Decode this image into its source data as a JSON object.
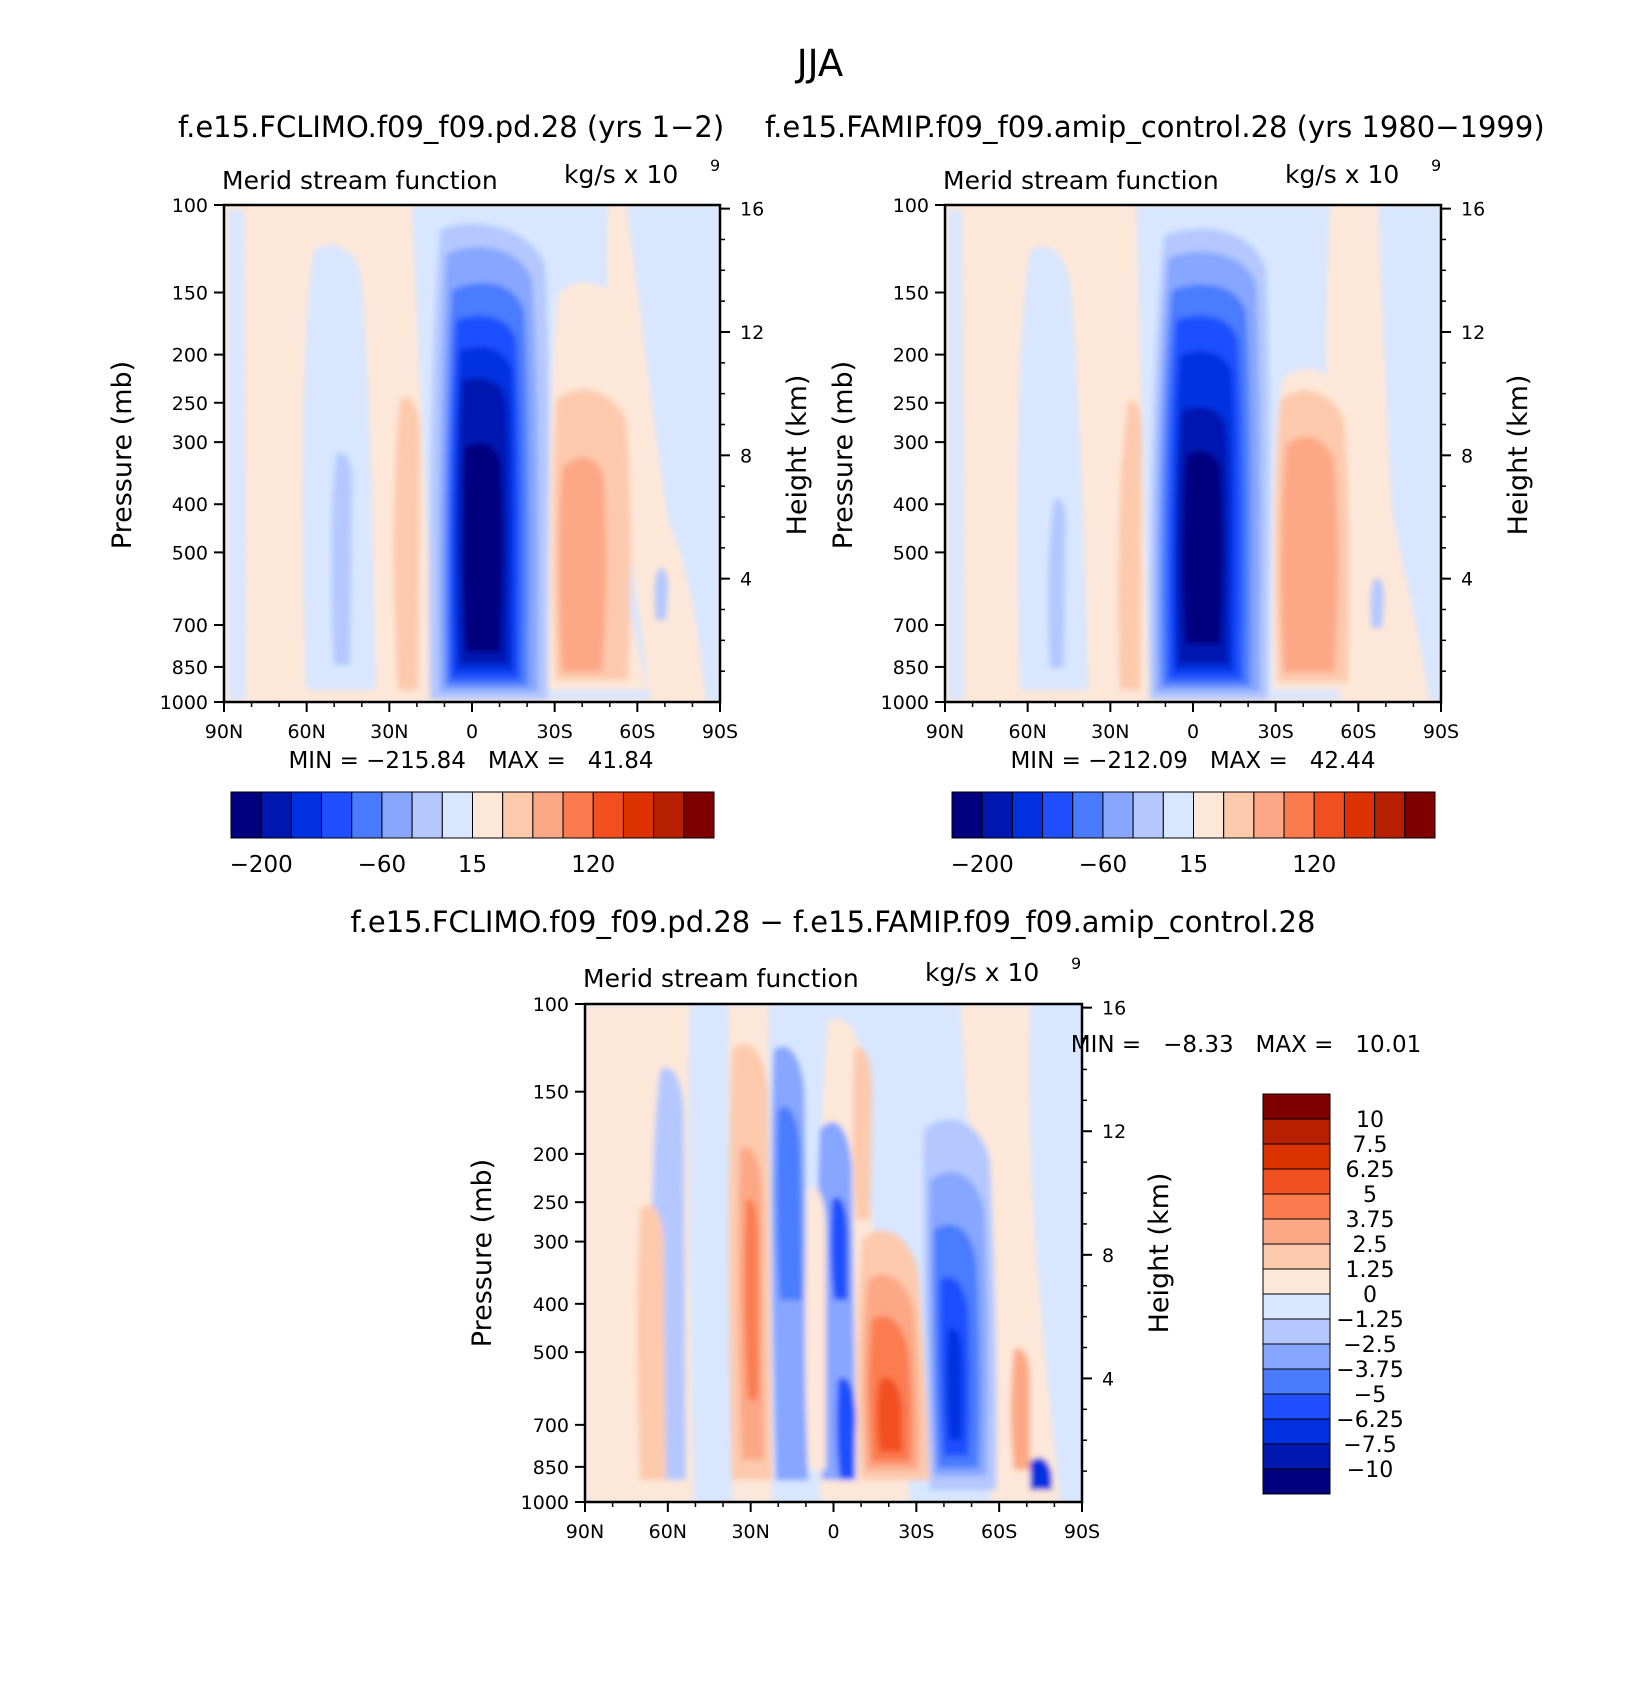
{
  "figure": {
    "season": "JJA",
    "left_title": "f.e15.FCLIMO.f09_f09.pd.28 (yrs 1−2)",
    "right_title": "f.e15.FAMIP.f09_f09.amip_control.28 (yrs 1980−1999)",
    "diff_title": "f.e15.FCLIMO.f09_f09.pd.28 − f.e15.FAMIP.f09_f09.amip_control.28"
  },
  "panels": {
    "top_left": {
      "subtitle": "Merid stream function",
      "units": "kg/s x 10",
      "units_exp": "9",
      "y_label": "Pressure (mb)",
      "y2_label": "Height (km)",
      "minmax": "MIN = −215.84   MAX =   41.84"
    },
    "top_right": {
      "subtitle": "Merid stream function",
      "units": "kg/s x 10",
      "units_exp": "9",
      "y_label": "Pressure (mb)",
      "y2_label": "Height (km)",
      "minmax": "MIN = −212.09   MAX =   42.44"
    },
    "bottom": {
      "subtitle": "Merid stream function",
      "units": "kg/s x 10",
      "units_exp": "9",
      "y_label": "Pressure (mb)",
      "y2_label": "Height (km)",
      "minmax": "MIN =   −8.33   MAX =   10.01"
    }
  },
  "chart_data": [
    {
      "type": "heatmap",
      "panel": "top_left",
      "title": "Merid stream function",
      "xlabel": "",
      "ylabel": "Pressure (mb)",
      "y2label": "Height (km)",
      "x_ticks": [
        "90N",
        "60N",
        "30N",
        "0",
        "30S",
        "60S",
        "90S"
      ],
      "x_range": [
        90,
        -90
      ],
      "y_ticks": [
        100,
        150,
        200,
        250,
        300,
        400,
        500,
        700,
        850,
        1000
      ],
      "y_range": [
        100,
        1000
      ],
      "y2_ticks": [
        16,
        12,
        8,
        4
      ],
      "min": -215.84,
      "max": 41.84,
      "colorbar_labels": [
        "−200",
        "−60",
        "15",
        "120"
      ]
    },
    {
      "type": "heatmap",
      "panel": "top_right",
      "title": "Merid stream function",
      "xlabel": "",
      "ylabel": "Pressure (mb)",
      "y2label": "Height (km)",
      "x_ticks": [
        "90N",
        "60N",
        "30N",
        "0",
        "30S",
        "60S",
        "90S"
      ],
      "x_range": [
        90,
        -90
      ],
      "y_ticks": [
        100,
        150,
        200,
        250,
        300,
        400,
        500,
        700,
        850,
        1000
      ],
      "y_range": [
        100,
        1000
      ],
      "y2_ticks": [
        16,
        12,
        8,
        4
      ],
      "min": -212.09,
      "max": 42.44,
      "colorbar_labels": [
        "−200",
        "−60",
        "15",
        "120"
      ]
    },
    {
      "type": "heatmap",
      "panel": "bottom",
      "title": "Merid stream function",
      "xlabel": "",
      "ylabel": "Pressure (mb)",
      "y2label": "Height (km)",
      "x_ticks": [
        "90N",
        "60N",
        "30N",
        "0",
        "30S",
        "60S",
        "90S"
      ],
      "x_range": [
        90,
        -90
      ],
      "y_ticks": [
        100,
        150,
        200,
        250,
        300,
        400,
        500,
        700,
        850,
        1000
      ],
      "y_range": [
        100,
        1000
      ],
      "y2_ticks": [
        16,
        12,
        8,
        4
      ],
      "min": -8.33,
      "max": 10.01,
      "colorbar_labels": [
        "10",
        "7.5",
        "6.25",
        "5",
        "3.75",
        "2.5",
        "1.25",
        "0",
        "−1.25",
        "−2.5",
        "−3.75",
        "−5",
        "−6.25",
        "−7.5",
        "−10"
      ]
    }
  ],
  "colors": {
    "palette": [
      "#00007f",
      "#0018b0",
      "#0030e0",
      "#1f4fff",
      "#4a7bff",
      "#86a6ff",
      "#b4c8ff",
      "#d8e6ff",
      "#fde7d8",
      "#fdc9ad",
      "#fca785",
      "#fb7b4f",
      "#f24f20",
      "#db3200",
      "#b61f00",
      "#7f0000"
    ],
    "bottom_palette": [
      "#7f0000",
      "#b61f00",
      "#db3200",
      "#f24f20",
      "#fb7b4f",
      "#fca785",
      "#fdc9ad",
      "#fde7d8",
      "#d8e6ff",
      "#b4c8ff",
      "#86a6ff",
      "#4a7bff",
      "#1f4fff",
      "#0030e0",
      "#0018b0",
      "#00007f"
    ]
  }
}
